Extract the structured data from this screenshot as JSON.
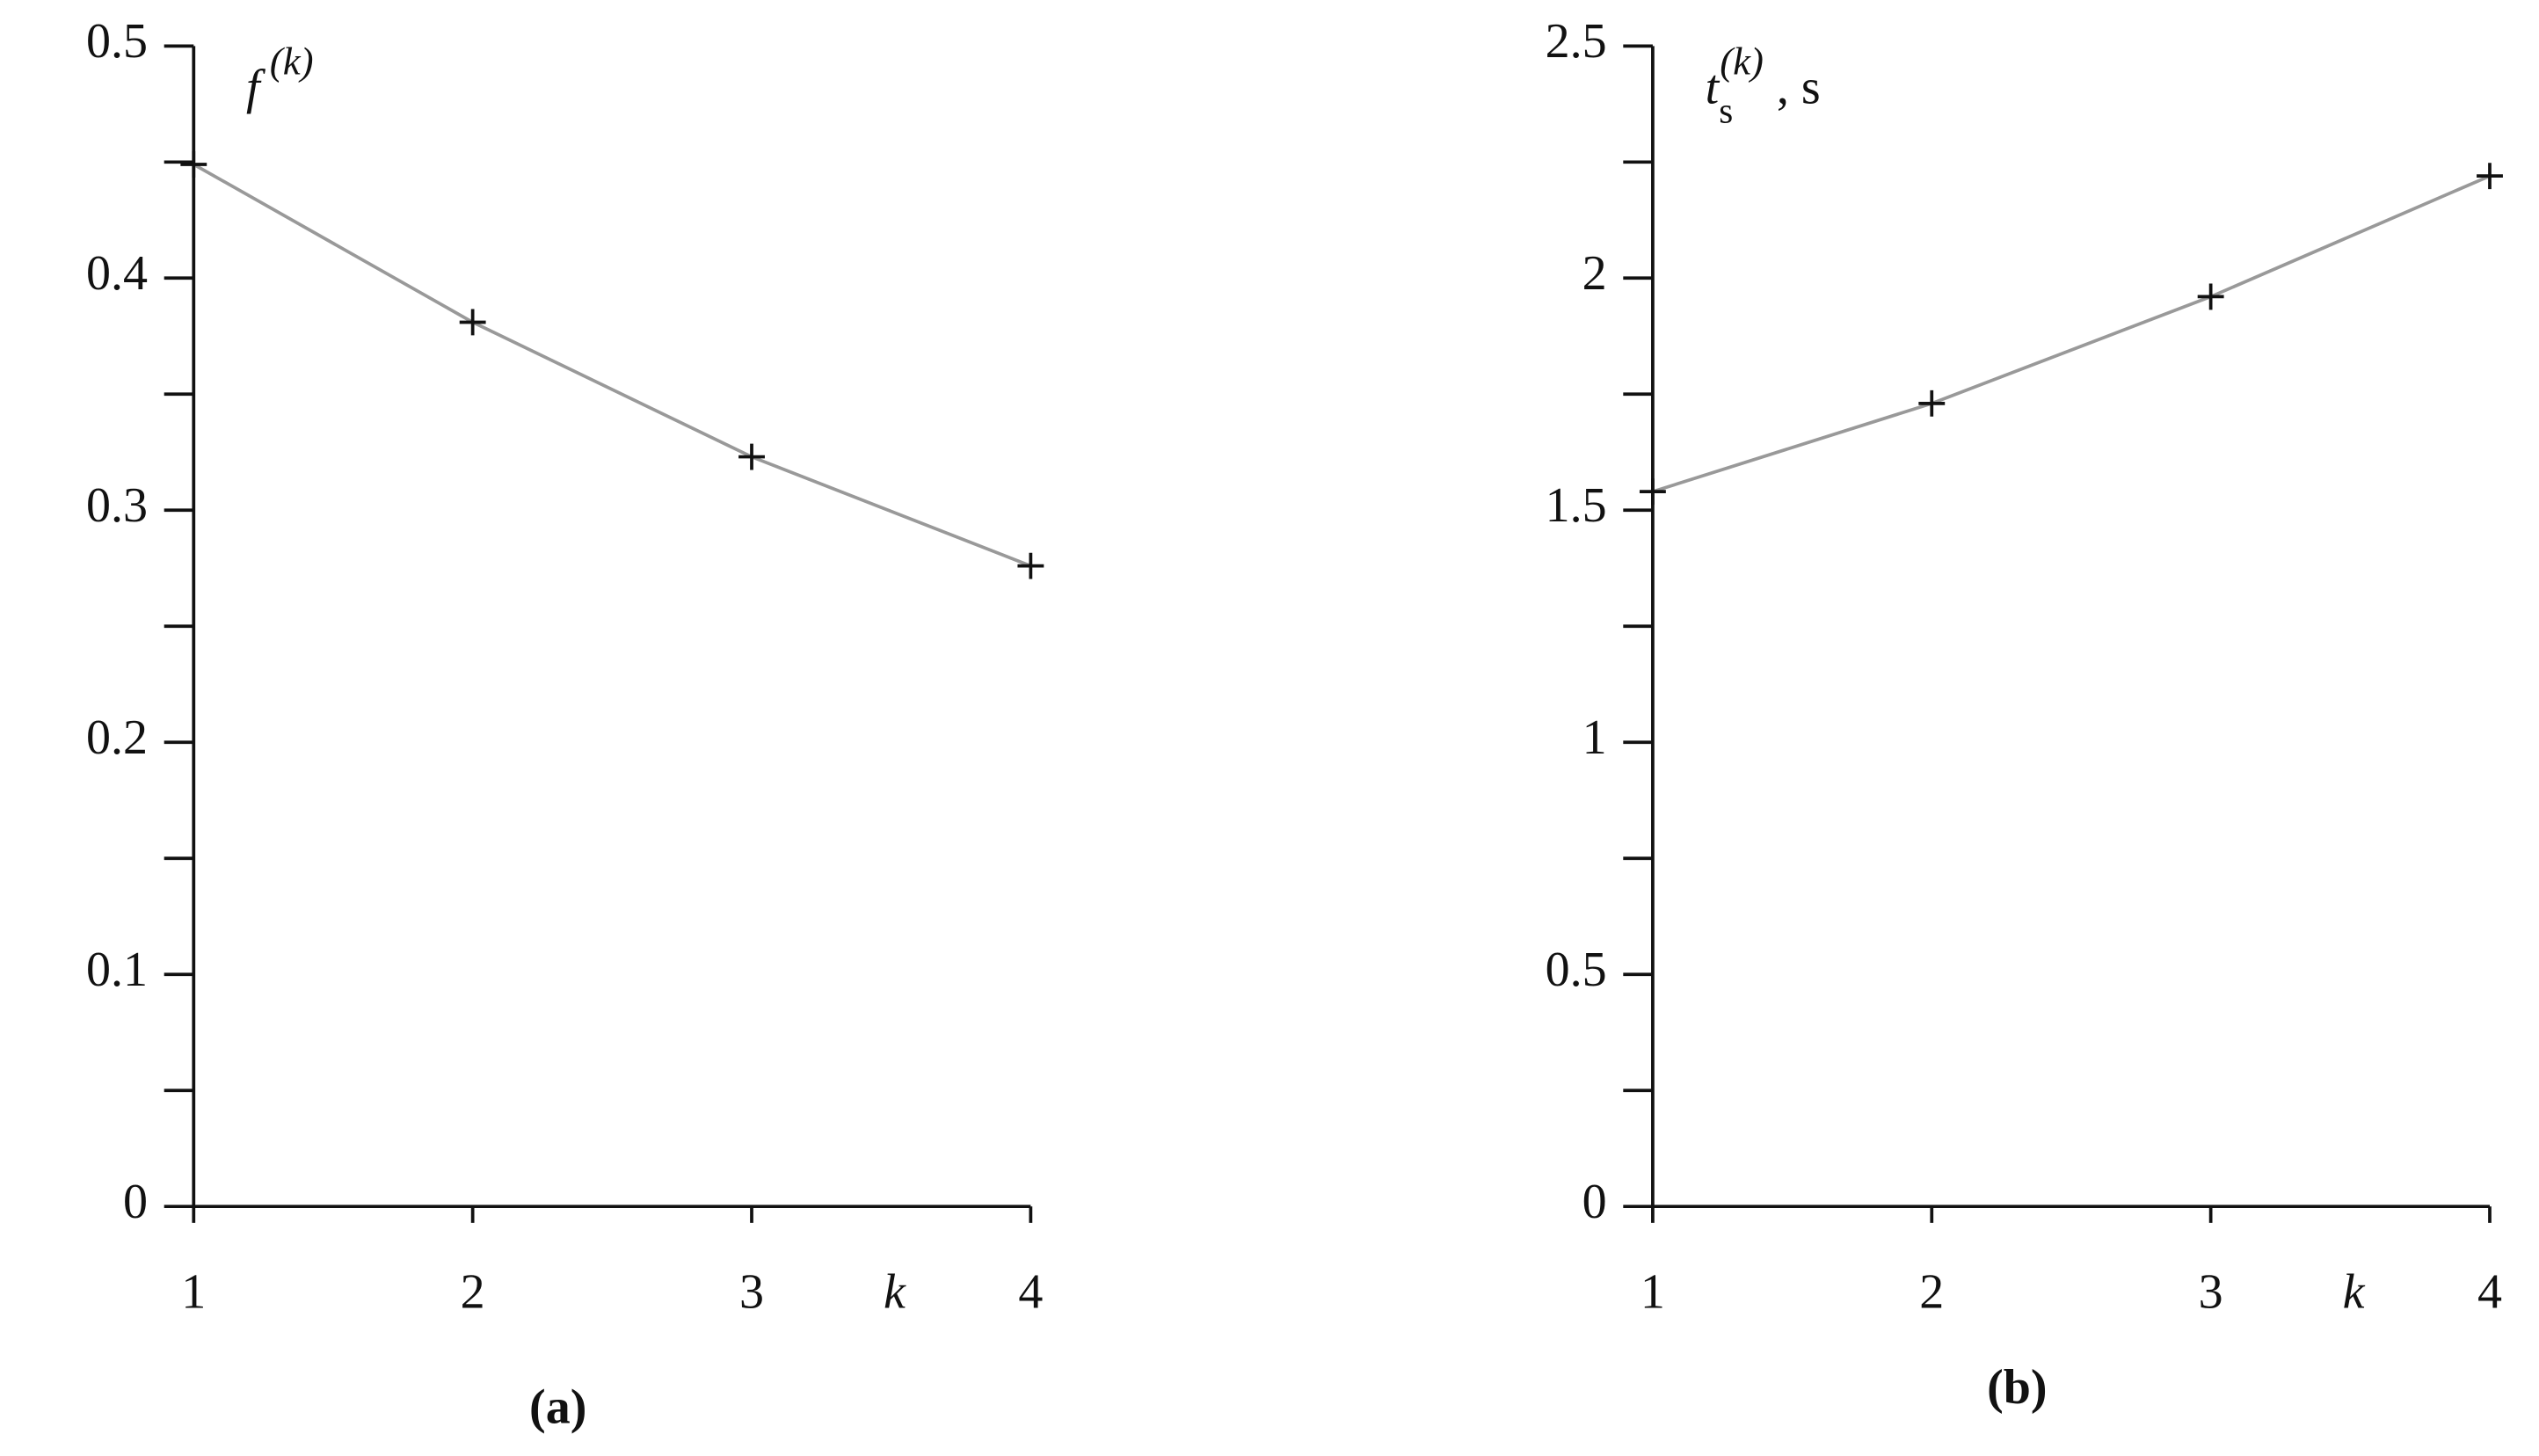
{
  "chart_data": [
    {
      "type": "line",
      "panel": "(a)",
      "ylabel": {
        "base": "f",
        "sup": "(k)"
      },
      "xlabel": "k",
      "x": [
        1,
        2,
        3,
        4
      ],
      "xlim": [
        1,
        4
      ],
      "xticks": [
        1,
        2,
        3,
        4
      ],
      "ylim": [
        0,
        0.5
      ],
      "yticks": [
        0,
        0.1,
        0.2,
        0.3,
        0.4,
        0.5
      ],
      "yminorticks": [
        0.05,
        0.15,
        0.25,
        0.35,
        0.45
      ],
      "marker": "+",
      "series": [
        {
          "color": "#999999",
          "values": [
            0.449,
            0.381,
            0.323,
            0.276
          ]
        }
      ]
    },
    {
      "type": "line",
      "panel": "(b)",
      "ylabel": {
        "base": "t",
        "sub": "s",
        "sup": "(k)",
        "suffix": ", s"
      },
      "xlabel": "k",
      "x": [
        1,
        2,
        3,
        4
      ],
      "xlim": [
        1,
        4
      ],
      "xticks": [
        1,
        2,
        3,
        4
      ],
      "ylim": [
        0,
        2.5
      ],
      "yticks": [
        0,
        0.5,
        1,
        1.5,
        2,
        2.5
      ],
      "yminorticks": [
        0.25,
        0.75,
        1.25,
        1.75,
        2.25
      ],
      "marker": "+",
      "series": [
        {
          "color": "#999999",
          "values": [
            1.54,
            1.73,
            1.96,
            2.22
          ]
        }
      ]
    }
  ]
}
